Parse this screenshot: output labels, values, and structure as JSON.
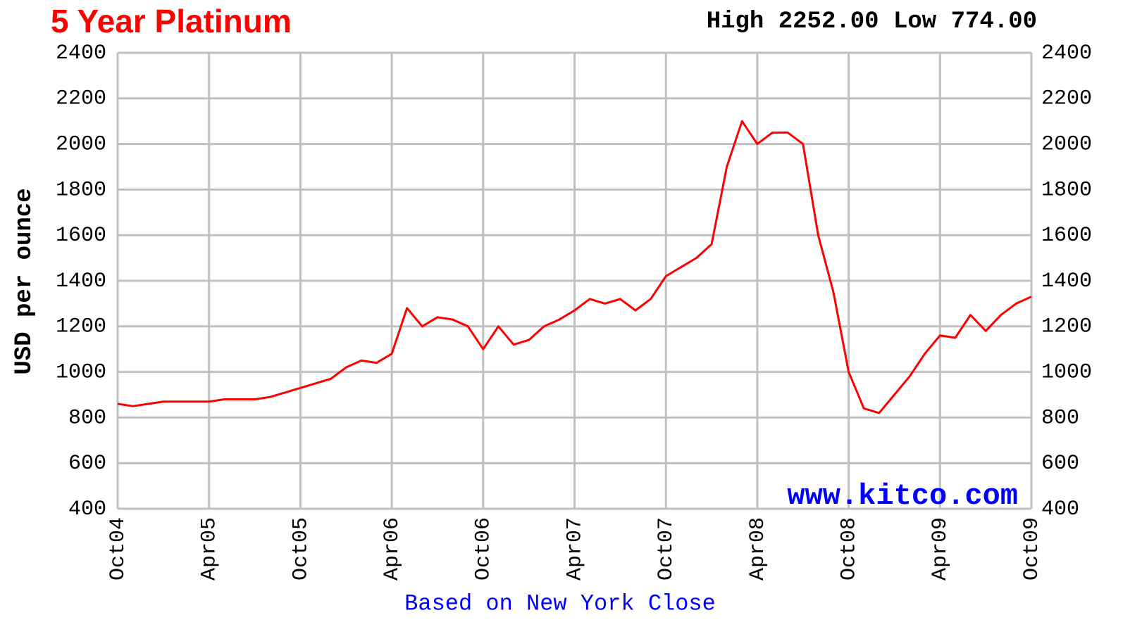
{
  "chart_data": {
    "type": "line",
    "title": "5 Year Platinum",
    "subtitle": "High 2252.00 Low 774.00",
    "ylabel": "USD per ounce",
    "xlabel": "Based on New York Close",
    "annotation": "www.kitco.com",
    "x": [
      "Oct04",
      "Nov04",
      "Dec04",
      "Jan05",
      "Feb05",
      "Mar05",
      "Apr05",
      "May05",
      "Jun05",
      "Jul05",
      "Aug05",
      "Sep05",
      "Oct05",
      "Nov05",
      "Dec05",
      "Jan06",
      "Feb06",
      "Mar06",
      "Apr06",
      "May06",
      "Jun06",
      "Jul06",
      "Aug06",
      "Sep06",
      "Oct06",
      "Nov06",
      "Dec06",
      "Jan07",
      "Feb07",
      "Mar07",
      "Apr07",
      "May07",
      "Jun07",
      "Jul07",
      "Aug07",
      "Sep07",
      "Oct07",
      "Nov07",
      "Dec07",
      "Jan08",
      "Feb08",
      "Mar08",
      "Apr08",
      "May08",
      "Jun08",
      "Jul08",
      "Aug08",
      "Sep08",
      "Oct08",
      "Nov08",
      "Dec08",
      "Jan09",
      "Feb09",
      "Mar09",
      "Apr09",
      "May09",
      "Jun09",
      "Jul09",
      "Aug09",
      "Sep09",
      "Oct09"
    ],
    "series": [
      {
        "name": "Platinum",
        "color": "#ff0000",
        "values": [
          860,
          850,
          860,
          870,
          870,
          870,
          870,
          880,
          880,
          880,
          890,
          910,
          930,
          950,
          970,
          1020,
          1050,
          1040,
          1080,
          1280,
          1200,
          1240,
          1230,
          1200,
          1100,
          1200,
          1120,
          1140,
          1200,
          1230,
          1270,
          1320,
          1300,
          1320,
          1270,
          1320,
          1420,
          1460,
          1500,
          1560,
          1900,
          2100,
          2000,
          2050,
          2050,
          2000,
          1600,
          1350,
          1000,
          840,
          820,
          900,
          980,
          1080,
          1160,
          1150,
          1250,
          1180,
          1250,
          1300,
          1330
        ]
      }
    ],
    "xticks": [
      "Oct04",
      "Apr05",
      "Oct05",
      "Apr06",
      "Oct06",
      "Apr07",
      "Oct07",
      "Apr08",
      "Oct08",
      "Apr09",
      "Oct09"
    ],
    "ylim": [
      400,
      2400
    ],
    "yticks": [
      400,
      600,
      800,
      1000,
      1200,
      1400,
      1600,
      1800,
      2000,
      2200,
      2400
    ],
    "grid": true
  }
}
